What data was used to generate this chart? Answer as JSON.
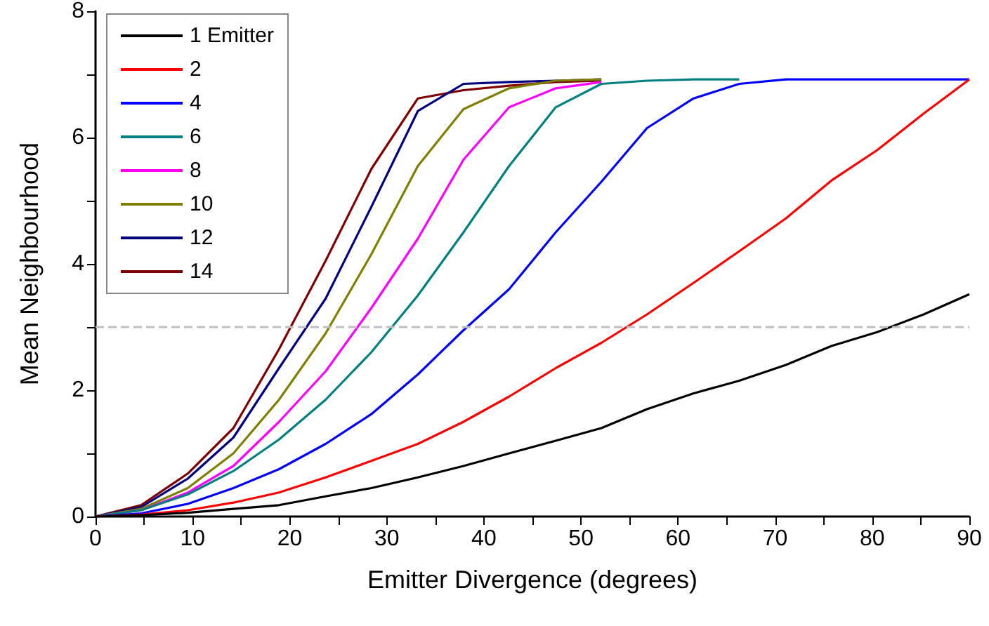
{
  "chart_data": {
    "type": "line",
    "xlabel": "Emitter Divergence (degrees)",
    "ylabel": "Mean Neighbourhood",
    "x": [
      0,
      4.7,
      9.5,
      14.2,
      18.9,
      23.7,
      28.4,
      33.2,
      37.9,
      42.6,
      47.4,
      52.1,
      56.8,
      61.6,
      66.3,
      71.1,
      75.8,
      80.5,
      85.3,
      90
    ],
    "series": [
      {
        "name": "1 Emitter",
        "color": "#000000",
        "values": [
          0,
          0.02,
          0.06,
          0.12,
          0.18,
          0.32,
          0.45,
          0.62,
          0.8,
          1.0,
          1.2,
          1.4,
          1.7,
          1.95,
          2.15,
          2.4,
          2.7,
          2.92,
          3.2,
          3.52
        ]
      },
      {
        "name": "2",
        "color": "#ff0000",
        "values": [
          0,
          0.03,
          0.1,
          0.22,
          0.38,
          0.62,
          0.88,
          1.15,
          1.5,
          1.9,
          2.35,
          2.75,
          3.2,
          3.7,
          4.2,
          4.72,
          5.32,
          5.8,
          6.38,
          6.92
        ]
      },
      {
        "name": "4",
        "color": "#0000ff",
        "values": [
          0,
          0.05,
          0.2,
          0.45,
          0.75,
          1.15,
          1.62,
          2.25,
          2.95,
          3.6,
          4.5,
          5.3,
          6.15,
          6.62,
          6.85,
          6.92,
          6.92,
          6.92,
          6.92,
          6.92
        ]
      },
      {
        "name": "6",
        "color": "#008080",
        "values": [
          0,
          0.1,
          0.35,
          0.72,
          1.22,
          1.85,
          2.6,
          3.5,
          4.5,
          5.55,
          6.48,
          6.85,
          6.9,
          6.92,
          6.92,
          null,
          null,
          null,
          null,
          null
        ]
      },
      {
        "name": "8",
        "color": "#ff00ff",
        "values": [
          0,
          0.1,
          0.38,
          0.8,
          1.5,
          2.3,
          3.3,
          4.4,
          5.65,
          6.48,
          6.78,
          6.88,
          null,
          null,
          null,
          null,
          null,
          null,
          null,
          null
        ]
      },
      {
        "name": "10",
        "color": "#808000",
        "values": [
          0,
          0.12,
          0.45,
          1.0,
          1.85,
          2.9,
          4.15,
          5.55,
          6.45,
          6.78,
          6.9,
          6.92,
          null,
          null,
          null,
          null,
          null,
          null,
          null,
          null
        ]
      },
      {
        "name": "12",
        "color": "#000080",
        "values": [
          0,
          0.15,
          0.6,
          1.25,
          2.35,
          3.45,
          4.9,
          6.42,
          6.85,
          6.88,
          6.9,
          6.92,
          null,
          null,
          null,
          null,
          null,
          null,
          null,
          null
        ]
      },
      {
        "name": "14",
        "color": "#800000",
        "values": [
          0,
          0.18,
          0.68,
          1.4,
          2.65,
          4.05,
          5.5,
          6.62,
          6.75,
          6.82,
          6.88,
          6.9,
          null,
          null,
          null,
          null,
          null,
          null,
          null,
          null
        ]
      }
    ],
    "xlim": [
      0,
      90
    ],
    "xticks": [
      0,
      {
        "value": 5,
        "label": null
      },
      10,
      {
        "value": 15,
        "label": null
      },
      20,
      {
        "value": 25,
        "label": null
      },
      30,
      {
        "value": 35,
        "label": null
      },
      40,
      {
        "value": 45,
        "label": null
      },
      50,
      {
        "value": 55,
        "label": null
      },
      60,
      {
        "value": 65,
        "label": null
      },
      70,
      {
        "value": 75,
        "label": null
      },
      80,
      {
        "value": 85,
        "label": null
      },
      90
    ],
    "ylim": [
      0,
      8
    ],
    "yticks": [
      0,
      {
        "value": 1,
        "label": null
      },
      2,
      {
        "value": 3,
        "label": null
      },
      4,
      {
        "value": 5,
        "label": null
      },
      6,
      {
        "value": 7,
        "label": null
      },
      8
    ],
    "ref_lines": [
      {
        "axis": "y",
        "value": 3,
        "color": "#c0c0c0",
        "line_style": "dashed"
      }
    ],
    "grid": false,
    "legend": "top left",
    "marker": "none",
    "line_style": "solid"
  }
}
